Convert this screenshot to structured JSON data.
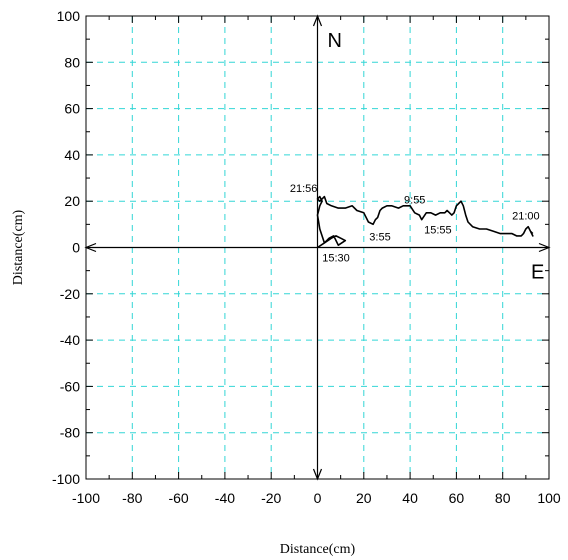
{
  "chart_data": {
    "type": "line",
    "xlabel": "Distance(cm)",
    "ylabel": "Distance(cm)",
    "xlim": [
      -100,
      100
    ],
    "ylim": [
      -100,
      100
    ],
    "xticks": [
      -100,
      -80,
      -60,
      -40,
      -20,
      0,
      20,
      40,
      60,
      80,
      100
    ],
    "yticks": [
      -100,
      -80,
      -60,
      -40,
      -20,
      0,
      20,
      40,
      60,
      80,
      100
    ],
    "grid": true,
    "grid_color": "#33d6d6",
    "line_color": "#000000",
    "direction_labels": {
      "north": "N",
      "east": "E"
    },
    "series": [
      {
        "x": [
          0,
          3,
          6,
          8,
          10,
          12,
          9,
          7,
          5,
          3,
          1,
          0,
          1,
          2,
          1,
          0,
          1,
          2,
          3,
          4,
          6,
          9,
          12,
          15,
          17,
          20,
          22,
          24,
          25,
          26,
          27,
          28,
          30,
          32,
          35,
          37,
          40,
          42,
          44,
          45,
          47,
          49,
          51,
          53,
          55,
          56,
          57,
          58,
          59,
          60,
          61,
          62,
          63,
          64,
          65,
          67,
          70,
          73,
          76,
          79,
          82,
          84,
          86,
          88,
          89,
          90,
          91,
          92,
          93,
          92,
          93
        ],
        "y": [
          0,
          2,
          4,
          5,
          4,
          3,
          1,
          5,
          4,
          2,
          8,
          14,
          18,
          20,
          22,
          21,
          20,
          21,
          22,
          19,
          18,
          17,
          17,
          18,
          16,
          15,
          11,
          10,
          12,
          13,
          16,
          17,
          18,
          18,
          17,
          18,
          18,
          15,
          14,
          12,
          15,
          15,
          14,
          15,
          15,
          16,
          15,
          14,
          15,
          18,
          19,
          20,
          18,
          14,
          11,
          9,
          8,
          8,
          7,
          6,
          6,
          6,
          5,
          5,
          6,
          8,
          9,
          7,
          5,
          7,
          6
        ]
      }
    ],
    "annotations": [
      {
        "text": "21:56",
        "x": -6,
        "y": 24
      },
      {
        "text": "9:55",
        "x": 42,
        "y": 19
      },
      {
        "text": "21:00",
        "x": 90,
        "y": 12
      },
      {
        "text": "3:55",
        "x": 27,
        "y": 3
      },
      {
        "text": "15:55",
        "x": 52,
        "y": 6
      },
      {
        "text": "15:30",
        "x": 8,
        "y": -6
      }
    ]
  }
}
